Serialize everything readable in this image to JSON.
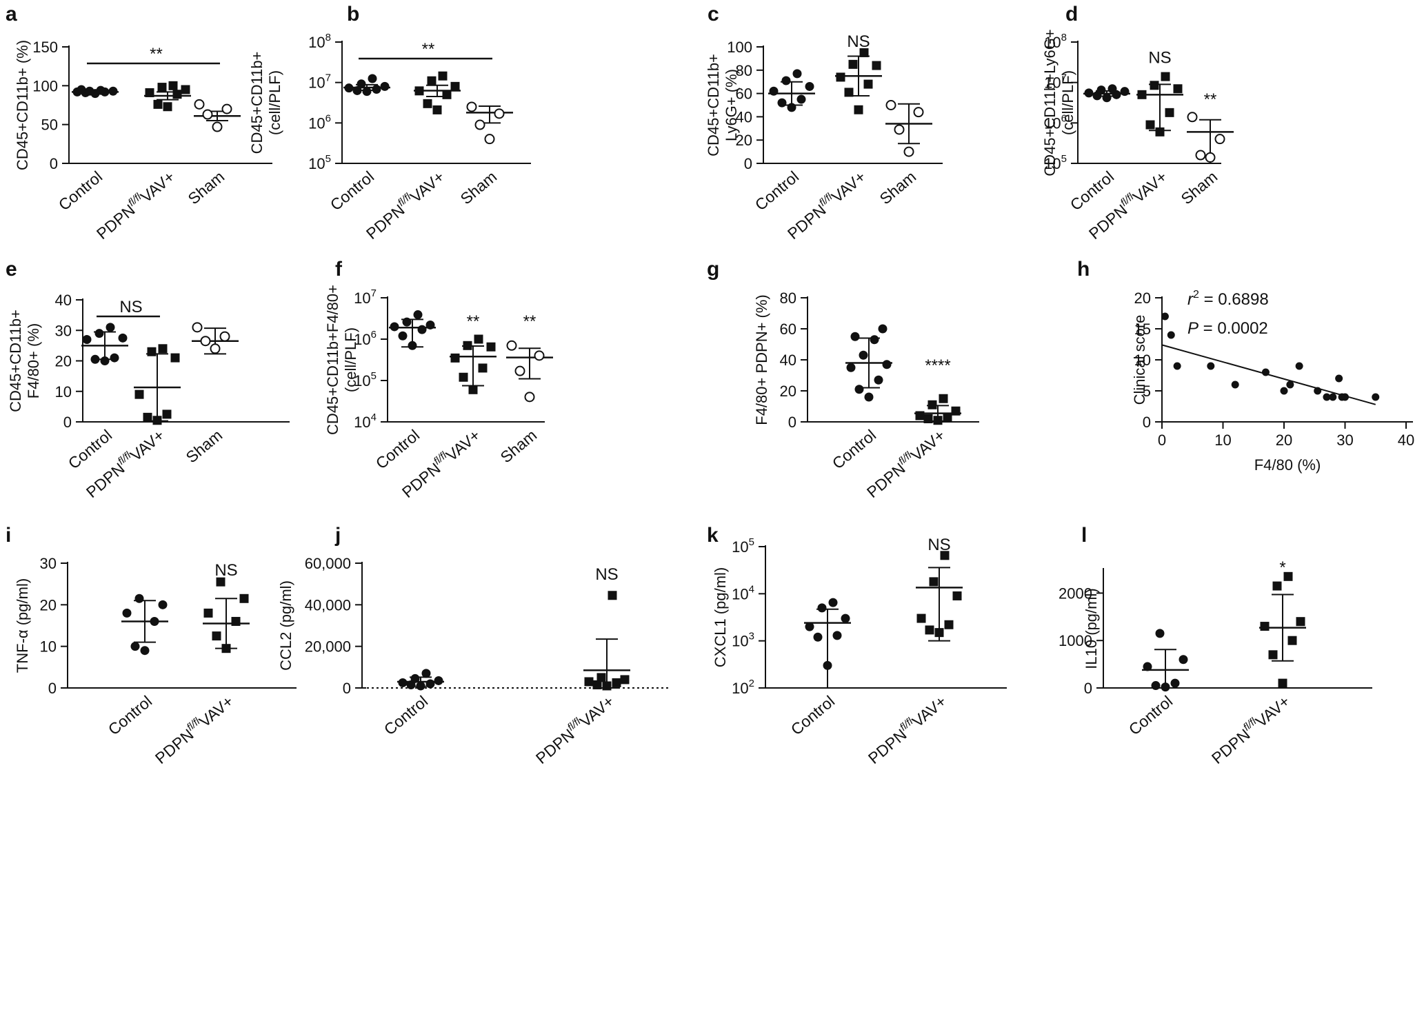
{
  "figure": {
    "panels_count": 12
  },
  "chart_data": [
    {
      "id": "a",
      "panel_letter": "a",
      "type": "scatter",
      "ylabel": "CD45+CD11b+ (%)",
      "scale": "linear",
      "ylim": [
        0,
        150
      ],
      "yticks": [
        0,
        50,
        100,
        150
      ],
      "ytick_labels": [
        "0",
        "50",
        "100",
        "150"
      ],
      "categories": [
        {
          "base": "Control",
          "sup": "",
          "tail": ""
        },
        {
          "base": "PDPN",
          "sup": "fl/fl",
          "tail": "VAV+"
        },
        {
          "base": "Sham",
          "sup": "",
          "tail": ""
        }
      ],
      "series": [
        {
          "name": "Control",
          "marker": "circle-filled",
          "points": [
            90,
            91,
            92,
            92,
            93,
            93,
            94,
            95
          ],
          "mean": 92,
          "err": 2
        },
        {
          "name": "PDPN fl/fl VAV+",
          "marker": "square-filled",
          "points": [
            73,
            76,
            89,
            91,
            95,
            98,
            100
          ],
          "mean": 87,
          "err": 5
        },
        {
          "name": "Sham",
          "marker": "circle-open",
          "points": [
            47,
            63,
            70,
            76
          ],
          "mean": 61,
          "err": 6
        }
      ],
      "annotations": [
        {
          "text": "**",
          "bar_from": 0,
          "bar_to": 2
        }
      ]
    },
    {
      "id": "b",
      "panel_letter": "b",
      "type": "scatter",
      "ylabel_lines": [
        "CD45+CD11b+",
        "(cell/PLF)"
      ],
      "scale": "log",
      "ylim": [
        100000,
        100000000
      ],
      "yticks": [
        100000,
        1000000,
        10000000,
        100000000
      ],
      "ytick_labels": [
        {
          "base": "10",
          "exp": "5"
        },
        {
          "base": "10",
          "exp": "6"
        },
        {
          "base": "10",
          "exp": "7"
        },
        {
          "base": "10",
          "exp": "8"
        }
      ],
      "categories": [
        {
          "base": "Control",
          "sup": "",
          "tail": ""
        },
        {
          "base": "PDPN",
          "sup": "fl/fl",
          "tail": "VAV+"
        },
        {
          "base": "Sham",
          "sup": "",
          "tail": ""
        }
      ],
      "series": [
        {
          "name": "Control",
          "marker": "circle-filled",
          "points": [
            6000000,
            6300000,
            6800000,
            7300000,
            8000000,
            9200000,
            12500000
          ],
          "mean": 7500000,
          "err_low": 6400000,
          "err_high": 8800000
        },
        {
          "name": "PDPN fl/fl VAV+",
          "marker": "square-filled",
          "points": [
            2100000,
            3000000,
            5000000,
            6200000,
            8000000,
            11000000,
            14500000
          ],
          "mean": 6300000,
          "err_low": 4500000,
          "err_high": 8500000
        },
        {
          "name": "Sham",
          "marker": "circle-open",
          "points": [
            400000,
            900000,
            1700000,
            2500000
          ],
          "mean": 1800000,
          "err_low": 1000000,
          "err_high": 2600000
        }
      ],
      "annotations": [
        {
          "text": "**",
          "bar_from": 0,
          "bar_to": 2
        }
      ]
    },
    {
      "id": "c",
      "panel_letter": "c",
      "type": "scatter",
      "ylabel_lines": [
        "CD45+CD11b+",
        "Ly6G+ (%)"
      ],
      "scale": "linear",
      "ylim": [
        0,
        100
      ],
      "yticks": [
        0,
        20,
        40,
        60,
        80,
        100
      ],
      "ytick_labels": [
        "0",
        "20",
        "40",
        "60",
        "80",
        "100"
      ],
      "categories": [
        {
          "base": "Control",
          "sup": "",
          "tail": ""
        },
        {
          "base": "PDPN",
          "sup": "fl/fl",
          "tail": "VAV+"
        },
        {
          "base": "Sham",
          "sup": "",
          "tail": ""
        }
      ],
      "series": [
        {
          "name": "Control",
          "marker": "circle-filled",
          "points": [
            48,
            52,
            55,
            62,
            66,
            71,
            77
          ],
          "mean": 60,
          "err": 10
        },
        {
          "name": "PDPN fl/fl VAV+",
          "marker": "square-filled",
          "points": [
            46,
            61,
            68,
            74,
            84,
            85,
            95
          ],
          "mean": 75,
          "err": 17
        },
        {
          "name": "Sham",
          "marker": "circle-open",
          "points": [
            10,
            29,
            44,
            50
          ],
          "mean": 34,
          "err": 17
        }
      ],
      "annotations": [
        {
          "text": "NS",
          "group": 1,
          "at": 100
        }
      ]
    },
    {
      "id": "d",
      "panel_letter": "d",
      "type": "scatter",
      "ylabel_lines": [
        "CD45+CD11b+Ly6G+",
        "(cell/PLF)"
      ],
      "scale": "log",
      "ylim": [
        100000,
        100000000
      ],
      "yticks": [
        100000,
        1000000,
        10000000,
        100000000
      ],
      "ytick_labels": [
        {
          "base": "10",
          "exp": "5"
        },
        {
          "base": "10",
          "exp": "6"
        },
        {
          "base": "10",
          "exp": "7"
        },
        {
          "base": "10",
          "exp": "8"
        }
      ],
      "categories": [
        {
          "base": "Control",
          "sup": "",
          "tail": ""
        },
        {
          "base": "PDPN",
          "sup": "fl/fl",
          "tail": "VAV+"
        },
        {
          "base": "Sham",
          "sup": "",
          "tail": ""
        }
      ],
      "series": [
        {
          "name": "Control",
          "marker": "circle-filled",
          "points": [
            4200000,
            4700000,
            5000000,
            5500000,
            6000000,
            6500000,
            7000000
          ],
          "mean": 5300000,
          "err_low": 4600000,
          "err_high": 6200000
        },
        {
          "name": "PDPN fl/fl VAV+",
          "marker": "square-filled",
          "points": [
            600000,
            900000,
            1800000,
            5000000,
            7000000,
            8500000,
            14000000
          ],
          "mean": 5000000,
          "err_low": 650000,
          "err_high": 9000000
        },
        {
          "name": "Sham",
          "marker": "circle-open",
          "points": [
            140000,
            160000,
            400000,
            1400000
          ],
          "mean": 600000,
          "err_low": 100000,
          "err_high": 1200000
        }
      ],
      "annotations": [
        {
          "text": "NS",
          "group": 1,
          "at": 30000000
        },
        {
          "text": "**",
          "group": 2,
          "at": 2800000
        }
      ]
    },
    {
      "id": "e",
      "panel_letter": "e",
      "type": "scatter",
      "ylabel_lines": [
        "CD45+CD11b+",
        "F4/80+ (%)"
      ],
      "scale": "linear",
      "ylim": [
        0,
        40
      ],
      "yticks": [
        0,
        10,
        20,
        30,
        40
      ],
      "ytick_labels": [
        "0",
        "10",
        "20",
        "30",
        "40"
      ],
      "categories": [
        {
          "base": "Control",
          "sup": "",
          "tail": ""
        },
        {
          "base": "PDPN",
          "sup": "fl/fl",
          "tail": "VAV+"
        },
        {
          "base": "Sham",
          "sup": "",
          "tail": ""
        }
      ],
      "series": [
        {
          "name": "Control",
          "marker": "circle-filled",
          "points": [
            20,
            20.5,
            21,
            27,
            27.5,
            29,
            31
          ],
          "mean": 25,
          "err": 4.5
        },
        {
          "name": "PDPN fl/fl VAV+",
          "marker": "square-filled",
          "points": [
            0.5,
            1.5,
            2.5,
            9,
            21,
            23,
            24
          ],
          "mean": 11.3,
          "err": 11
        },
        {
          "name": "Sham",
          "marker": "circle-open",
          "points": [
            24,
            26.5,
            28,
            31
          ],
          "mean": 26.5,
          "err": 4.2
        }
      ],
      "annotations": [
        {
          "text": "NS",
          "bar_from": 0,
          "bar_to": 1
        }
      ]
    },
    {
      "id": "f",
      "panel_letter": "f",
      "type": "scatter",
      "ylabel_lines": [
        "CD45+CD11b+F4/80+",
        "(cell/PLF)"
      ],
      "scale": "log",
      "ylim": [
        10000,
        10000000
      ],
      "yticks": [
        10000,
        100000,
        1000000,
        10000000
      ],
      "ytick_labels": [
        {
          "base": "10",
          "exp": "4"
        },
        {
          "base": "10",
          "exp": "5"
        },
        {
          "base": "10",
          "exp": "6"
        },
        {
          "base": "10",
          "exp": "7"
        }
      ],
      "categories": [
        {
          "base": "Control",
          "sup": "",
          "tail": ""
        },
        {
          "base": "PDPN",
          "sup": "fl/fl",
          "tail": "VAV+"
        },
        {
          "base": "Sham",
          "sup": "",
          "tail": ""
        }
      ],
      "series": [
        {
          "name": "Control",
          "marker": "circle-filled",
          "points": [
            700000,
            1200000,
            1700000,
            2000000,
            2200000,
            2600000,
            3900000
          ],
          "mean": 1900000,
          "err_low": 650000,
          "err_high": 3000000
        },
        {
          "name": "PDPN fl/fl VAV+",
          "marker": "square-filled",
          "points": [
            60000,
            120000,
            200000,
            350000,
            650000,
            700000,
            1000000
          ],
          "mean": 380000,
          "err_low": 75000,
          "err_high": 680000
        },
        {
          "name": "Sham",
          "marker": "circle-open",
          "points": [
            40000,
            170000,
            400000,
            700000
          ],
          "mean": 360000,
          "err_low": 110000,
          "err_high": 600000
        }
      ],
      "annotations": [
        {
          "text": "**",
          "group": 1,
          "at": 2000000
        },
        {
          "text": "**",
          "group": 2,
          "at": 2000000
        }
      ]
    },
    {
      "id": "g",
      "panel_letter": "g",
      "type": "scatter",
      "ylabel": "F4/80+ PDPN+ (%)",
      "scale": "linear",
      "ylim": [
        0,
        80
      ],
      "yticks": [
        0,
        20,
        40,
        60,
        80
      ],
      "ytick_labels": [
        "0",
        "20",
        "40",
        "60",
        "80"
      ],
      "categories": [
        {
          "base": "Control",
          "sup": "",
          "tail": ""
        },
        {
          "base": "PDPN",
          "sup": "fl/fl",
          "tail": "VAV+"
        }
      ],
      "series": [
        {
          "name": "Control",
          "marker": "circle-filled",
          "points": [
            16,
            21,
            27,
            35,
            37,
            43,
            53,
            55,
            60
          ],
          "mean": 38,
          "err": 16
        },
        {
          "name": "PDPN fl/fl VAV+",
          "marker": "square-filled",
          "points": [
            1,
            2,
            3,
            4,
            7,
            11,
            15
          ],
          "mean": 5.5,
          "err": 5
        }
      ],
      "annotations": [
        {
          "text": "****",
          "group": 1,
          "at": 33
        }
      ]
    },
    {
      "id": "h",
      "panel_letter": "h",
      "type": "scatter",
      "ylabel": "Clinical score",
      "xlabel": "F4/80 (%)",
      "scale": "linear",
      "xlim": [
        0,
        40
      ],
      "ylim": [
        0,
        20
      ],
      "xticks": [
        0,
        10,
        20,
        30,
        40
      ],
      "xtick_labels": [
        "0",
        "10",
        "20",
        "30",
        "40"
      ],
      "yticks": [
        0,
        5,
        10,
        15,
        20
      ],
      "ytick_labels": [
        "0",
        "5",
        "10",
        "15",
        "20"
      ],
      "x": [
        0.5,
        1.5,
        2.5,
        8,
        12,
        17,
        20,
        21,
        22.5,
        25.5,
        27,
        28,
        29,
        29.5,
        30,
        35
      ],
      "y": [
        17,
        14,
        9,
        9,
        6,
        8,
        5,
        6,
        9,
        5,
        4,
        4,
        7,
        4,
        4,
        4
      ],
      "fit": {
        "x0": 0,
        "y0": 12.4,
        "x1": 35,
        "y1": 2.8
      },
      "stats": {
        "r2_label": "r",
        "r2_exp": "2",
        "r2_value": " = 0.6898",
        "p_label": "P",
        "p_value": " = 0.0002"
      }
    },
    {
      "id": "i",
      "panel_letter": "i",
      "type": "scatter",
      "ylabel": "TNF-α (pg/ml)",
      "scale": "linear",
      "ylim": [
        0,
        30
      ],
      "yticks": [
        0,
        10,
        20,
        30
      ],
      "ytick_labels": [
        "0",
        "10",
        "20",
        "30"
      ],
      "categories": [
        {
          "base": "Control",
          "sup": "",
          "tail": ""
        },
        {
          "base": "PDPN",
          "sup": "fl/fl",
          "tail": "VAV+"
        }
      ],
      "series": [
        {
          "name": "Control",
          "marker": "circle-filled",
          "points": [
            9,
            10,
            16,
            18,
            20,
            21.5
          ],
          "mean": 16,
          "err": 5
        },
        {
          "name": "PDPN fl/fl VAV+",
          "marker": "square-filled",
          "points": [
            9.5,
            12.5,
            16,
            18,
            21.5,
            25.5
          ],
          "mean": 15.5,
          "err": 6
        }
      ],
      "annotations": [
        {
          "text": "NS",
          "group": 1,
          "at": 27
        }
      ]
    },
    {
      "id": "j",
      "panel_letter": "j",
      "type": "scatter",
      "ylabel": "CCL2 (pg/ml)",
      "scale": "linear",
      "ylim": [
        0,
        60000
      ],
      "yticks": [
        0,
        20000,
        40000,
        60000
      ],
      "ytick_labels": [
        "0",
        "20,000",
        "40,000",
        "60,000"
      ],
      "baseline_dotted": true,
      "categories": [
        {
          "base": "Control",
          "sup": "",
          "tail": ""
        },
        {
          "base": "PDPN",
          "sup": "fl/fl",
          "tail": "VAV+"
        }
      ],
      "series": [
        {
          "name": "Control",
          "marker": "circle-filled",
          "points": [
            1000,
            1500,
            2000,
            2500,
            3500,
            4500,
            7000
          ],
          "mean": 3000,
          "err": 2200
        },
        {
          "name": "PDPN fl/fl VAV+",
          "marker": "square-filled",
          "points": [
            1000,
            1500,
            2500,
            3000,
            4000,
            5000,
            44500
          ],
          "mean": 8500,
          "err": 15000
        }
      ],
      "annotations": [
        {
          "text": "NS",
          "group": 1,
          "at": 52000
        }
      ]
    },
    {
      "id": "k",
      "panel_letter": "k",
      "type": "scatter",
      "ylabel": "CXCL1 (pg/ml)",
      "scale": "log",
      "ylim": [
        100,
        100000
      ],
      "yticks": [
        100,
        1000,
        10000,
        100000
      ],
      "ytick_labels": [
        {
          "base": "10",
          "exp": "2"
        },
        {
          "base": "10",
          "exp": "3"
        },
        {
          "base": "10",
          "exp": "4"
        },
        {
          "base": "10",
          "exp": "5"
        }
      ],
      "categories": [
        {
          "base": "Control",
          "sup": "",
          "tail": ""
        },
        {
          "base": "PDPN",
          "sup": "fl/fl",
          "tail": "VAV+"
        }
      ],
      "series": [
        {
          "name": "Control",
          "marker": "circle-filled",
          "points": [
            300,
            1200,
            1300,
            2000,
            3000,
            5000,
            6500
          ],
          "mean": 2400,
          "err_low": 100,
          "err_high": 4700
        },
        {
          "name": "PDPN fl/fl VAV+",
          "marker": "square-filled",
          "points": [
            1500,
            1700,
            2200,
            3000,
            9000,
            18000,
            65000
          ],
          "mean": 13500,
          "err_low": 1000,
          "err_high": 36000
        }
      ],
      "annotations": [
        {
          "text": "NS",
          "group": 1,
          "at": 85000
        }
      ]
    },
    {
      "id": "l",
      "panel_letter": "l",
      "type": "scatter",
      "ylabel": "IL10 (pg/ml)",
      "scale": "linear",
      "ylim": [
        0,
        2500
      ],
      "yticks": [
        0,
        1000,
        2000
      ],
      "ytick_labels": [
        "0",
        "1000",
        "2000"
      ],
      "categories": [
        {
          "base": "Control",
          "sup": "",
          "tail": ""
        },
        {
          "base": "PDPN",
          "sup": "fl/fl",
          "tail": "VAV+"
        }
      ],
      "series": [
        {
          "name": "Control",
          "marker": "circle-filled",
          "points": [
            20,
            50,
            100,
            450,
            600,
            1150
          ],
          "mean": 380,
          "err": 430
        },
        {
          "name": "PDPN fl/fl VAV+",
          "marker": "square-filled",
          "points": [
            100,
            700,
            1000,
            1300,
            1400,
            2150,
            2350
          ],
          "mean": 1270,
          "err": 700
        }
      ],
      "annotations": [
        {
          "text": "*",
          "group": 1,
          "at": 2430
        }
      ]
    }
  ]
}
